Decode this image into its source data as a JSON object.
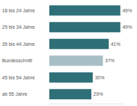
{
  "chart_data": {
    "type": "bar",
    "orientation": "horizontal",
    "categories": [
      "18 bis 24 Jahre",
      "25 bis 34 Jahre",
      "35 bis 44 Jahre",
      "Bundesschnitt",
      "45 bis 54 Jahre",
      "ab 55 Jahre"
    ],
    "values": [
      49,
      49,
      41,
      37,
      30,
      29
    ],
    "value_labels": [
      "49%",
      "49%",
      "41%",
      "37%",
      "30%",
      "29%"
    ],
    "colors": [
      "#2f6f78",
      "#2f6f78",
      "#2f6f78",
      "#a8c0c5",
      "#2f6f78",
      "#2f6f78"
    ],
    "xlim": [
      0,
      52
    ],
    "data_labels": true,
    "tick_labels": false,
    "grid": false
  }
}
